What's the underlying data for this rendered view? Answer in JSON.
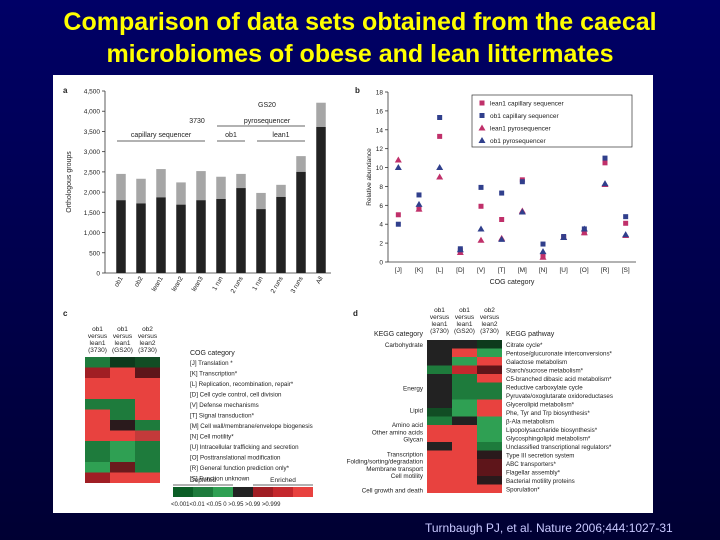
{
  "slide": {
    "title_line1": "Comparison of data sets obtained from the caecal",
    "title_line2": "microbiomes of obese and lean littermates",
    "citation": "Turnbaugh PJ, et al. Nature 2006;444:1027-31",
    "colors": {
      "background": "#000044",
      "title": "#ffff00",
      "citation": "#c8c8ff"
    }
  },
  "figure": {
    "panel_a": {
      "label": "a",
      "ylabel": "Orthologous groups",
      "yticks": [
        "0",
        "500",
        "1,000",
        "1,500",
        "2,000",
        "2,500",
        "3,000",
        "3,500",
        "4,000",
        "4,500"
      ],
      "group_labels": {
        "gs20": "GS20",
        "pyro": "pyrosequencer",
        "n3730": "3730",
        "capillary": "capillary sequencer",
        "ob1": "ob1",
        "lean1": "lean1"
      }
    },
    "panel_b": {
      "label": "b",
      "ylabel": "Relative abundance",
      "xlabel": "COG category",
      "legend": [
        "lean1 capillary sequencer",
        "ob1 capillary sequencer",
        "lean1 pyrosequencer",
        "ob1 pyrosequencer"
      ],
      "colors": {
        "lean1": "#c0306a",
        "ob1": "#303f8c"
      }
    },
    "panel_c": {
      "label": "c",
      "col_headers": [
        [
          "ob1",
          "versus",
          "lean1",
          "(3730)"
        ],
        [
          "ob1",
          "versus",
          "lean1",
          "(GS20)"
        ],
        [
          "ob2",
          "versus",
          "lean2",
          "(3730)"
        ]
      ],
      "title": "COG category",
      "rows": [
        "[J] Translation *",
        "[K] Transcription*",
        "[L] Replication, recombination, repair*",
        "[D] Cell cycle control, cell division",
        "[V] Defense mechanisms",
        "[T] Signal transduction*",
        "[M] Cell wall/membrane/envelope biogenesis",
        "[N] Cell motility*",
        "[U] Intracellular trafficking and secretion",
        "[O] Posttranslational modification",
        "[R] General function prediction only*",
        "[S] Function unknown"
      ],
      "cells": [
        [
          "#1e7b3c",
          "#0d3a1c",
          "#114d24"
        ],
        [
          "#a01e24",
          "#e8423f",
          "#5e151a"
        ],
        [
          "#e8423f",
          "#e8423f",
          "#e8423f"
        ],
        [
          "#e8423f",
          "#e8423f",
          "#e8423f"
        ],
        [
          "#1e7b3c",
          "#1e7b3c",
          "#e8423f"
        ],
        [
          "#e8423f",
          "#1e7b3c",
          "#e8423f"
        ],
        [
          "#e8423f",
          "#2a1a1c",
          "#1e7b3c"
        ],
        [
          "#e8423f",
          "#e8423f",
          "#c33a3a"
        ],
        [
          "#1e7b3c",
          "#2fa053",
          "#1e7b3c"
        ],
        [
          "#1e7b3c",
          "#2fa053",
          "#1e7b3c"
        ],
        [
          "#2fa053",
          "#6b1a1d",
          "#1e7b3c"
        ],
        [
          "#a01e24",
          "#e8423f",
          "#e8423f"
        ]
      ],
      "legend": {
        "depleted": "Depleted",
        "enriched": "Enriched",
        "scale": "<0.001<0.01 <0.05  0  >0.95 >0.99 >0.999",
        "colors": [
          "#0b5e26",
          "#1e7b3c",
          "#2fa053",
          "#222222",
          "#a01e24",
          "#c4282d",
          "#e8423f"
        ]
      }
    },
    "panel_d": {
      "label": "d",
      "col_headers": [
        [
          "ob1",
          "versus",
          "lean1",
          "(3730)"
        ],
        [
          "ob1",
          "versus",
          "lean1",
          "(GS20)"
        ],
        [
          "ob2",
          "versus",
          "lean2",
          "(3730)"
        ]
      ],
      "category_header": "KEGG category",
      "pathway_header": "KEGG pathway",
      "categories": [
        {
          "row": 0,
          "text": "Carbohydrate"
        },
        {
          "row": 6,
          "text": "Energy"
        },
        {
          "row": 9,
          "text": "Lipid"
        },
        {
          "row": 11,
          "text": "Amino acid"
        },
        {
          "row": 12,
          "text": "Other amino acids"
        },
        {
          "row": 13,
          "text": "Glycan"
        },
        {
          "row": 15,
          "text": "Transcription"
        },
        {
          "row": 16,
          "text": "Folding/sorting/degradation"
        },
        {
          "row": 17,
          "text": "Membrane transport"
        },
        {
          "row": 18,
          "text": "Cell motility"
        },
        {
          "row": 20,
          "text": "Cell growth and death"
        }
      ],
      "pathways": [
        "Citrate cycle*",
        "Pentose/glucuronate interconversions*",
        "Galactose metabolism",
        "Starch/sucrose metabolism*",
        "C5-branched dibasic acid metabolism*",
        "Reductive carboxylate cycle",
        "Pyruvate/oxoglutarate oxidoreductases",
        "Glycerolipid metabolism*",
        "Phe, Tyr and Trp biosynthesis*",
        "β-Ala metabolism",
        "Lipopolysaccharide biosynthesis*",
        "Glycosphingolipid metabolism*",
        "Unclassified transcriptional regulators*",
        "Type III secretion system",
        "ABC transporters*",
        "Flagellar assembly*",
        "Bacterial motility proteins",
        "Sporulation*"
      ],
      "cells": [
        [
          "#222222",
          "#222222",
          "#0d3a1c"
        ],
        [
          "#222222",
          "#e8423f",
          "#2fa053"
        ],
        [
          "#222222",
          "#2fa053",
          "#e8423f"
        ],
        [
          "#1e7b3c",
          "#c4282d",
          "#5e151a"
        ],
        [
          "#222222",
          "#1e7b3c",
          "#e8423f"
        ],
        [
          "#222222",
          "#1e7b3c",
          "#1e7b3c"
        ],
        [
          "#222222",
          "#1e7b3c",
          "#1e7b3c"
        ],
        [
          "#222222",
          "#2fa053",
          "#e8423f"
        ],
        [
          "#114d24",
          "#2fa053",
          "#e8423f"
        ],
        [
          "#1e7b3c",
          "#222222",
          "#2fa053"
        ],
        [
          "#e8423f",
          "#e8423f",
          "#2fa053"
        ],
        [
          "#e8423f",
          "#e8423f",
          "#2fa053"
        ],
        [
          "#222222",
          "#e8423f",
          "#1e7b3c"
        ],
        [
          "#e8423f",
          "#e8423f",
          "#2a1a1c"
        ],
        [
          "#e8423f",
          "#e8423f",
          "#5e151a"
        ],
        [
          "#e8423f",
          "#e8423f",
          "#5e151a"
        ],
        [
          "#e8423f",
          "#e8423f",
          "#2a1a1c"
        ],
        [
          "#e8423f",
          "#e8423f",
          "#e8423f"
        ]
      ]
    }
  },
  "chart_data": [
    {
      "type": "bar",
      "panel": "a",
      "categories": [
        "ob1",
        "ob2",
        "lean1",
        "lean2",
        "lean3",
        "1 run",
        "2 runs",
        "1 run",
        "2 runs",
        "3 runs",
        "All"
      ],
      "series": [
        {
          "values": [
            1800,
            1720,
            1870,
            1690,
            1800,
            1830,
            2100,
            1580,
            1880,
            2500,
            3610
          ]
        },
        {
          "values": [
            650,
            610,
            700,
            550,
            720,
            550,
            350,
            400,
            300,
            390,
            600
          ]
        }
      ],
      "ylabel": "Orthologous groups",
      "ylim": [
        0,
        4500
      ],
      "colors": [
        "#222222",
        "#a6a6a6"
      ]
    },
    {
      "type": "scatter",
      "panel": "b",
      "categories": [
        "[J]",
        "[K]",
        "[L]",
        "[D]",
        "[V]",
        "[T]",
        "[M]",
        "[N]",
        "[U]",
        "[O]",
        "[R]",
        "[S]"
      ],
      "series": [
        {
          "name": "lean1 capillary sequencer",
          "marker": "square",
          "color": "#c0306a",
          "values": [
            5,
            5.6,
            13.3,
            1.2,
            5.9,
            4.5,
            8.7,
            0.6,
            2.6,
            3.1,
            10.5,
            4.1
          ]
        },
        {
          "name": "ob1 capillary sequencer",
          "marker": "square",
          "color": "#303f8c",
          "values": [
            4,
            7.1,
            15.3,
            1.4,
            7.9,
            7.3,
            8.5,
            1.9,
            2.7,
            3.5,
            11,
            4.8
          ]
        },
        {
          "name": "lean1 pyrosequencer",
          "marker": "triangle",
          "color": "#c0306a",
          "values": [
            10.8,
            5.6,
            9,
            1,
            2.3,
            2.5,
            5.4,
            0.5,
            2.6,
            3.1,
            8.2,
            2.8
          ]
        },
        {
          "name": "ob1 pyrosequencer",
          "marker": "triangle",
          "color": "#303f8c",
          "values": [
            10,
            6.1,
            10,
            1.3,
            3.5,
            2.4,
            5.3,
            1.1,
            2.6,
            3.5,
            8.3,
            2.9
          ]
        }
      ],
      "ylabel": "Relative abundance",
      "xlabel": "COG category",
      "ylim": [
        0,
        18
      ],
      "legend_position": "top-right"
    }
  ]
}
